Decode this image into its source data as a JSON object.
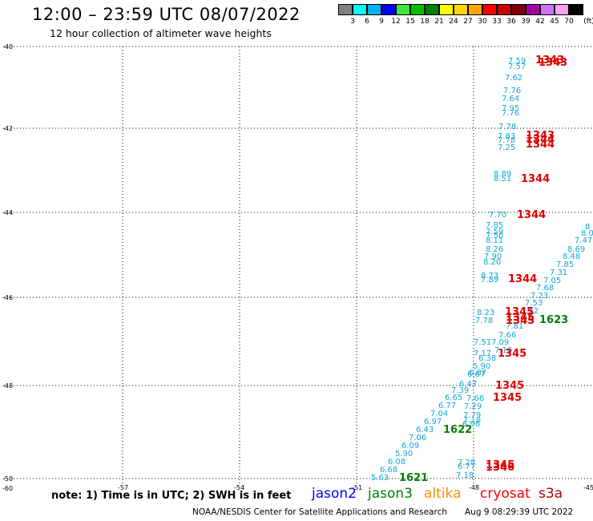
{
  "header": {
    "title": "12:00 – 23:59 UTC 08/07/2022",
    "subtitle": "12 hour collection of altimeter wave heights"
  },
  "colorbar": {
    "unit": "(ft)",
    "bins": [
      {
        "label": "3",
        "color": "#808080"
      },
      {
        "label": "6",
        "color": "#00ffff"
      },
      {
        "label": "9",
        "color": "#00b0f0"
      },
      {
        "label": "12",
        "color": "#0000ff"
      },
      {
        "label": "15",
        "color": "#3ee83e"
      },
      {
        "label": "18",
        "color": "#00c000"
      },
      {
        "label": "21",
        "color": "#008000"
      },
      {
        "label": "24",
        "color": "#ffff00"
      },
      {
        "label": "27",
        "color": "#ffd700"
      },
      {
        "label": "30",
        "color": "#ffa500"
      },
      {
        "label": "33",
        "color": "#ff0000"
      },
      {
        "label": "36",
        "color": "#c80000"
      },
      {
        "label": "39",
        "color": "#800000"
      },
      {
        "label": "42",
        "color": "#a000a0"
      },
      {
        "label": "45",
        "color": "#d070ff"
      },
      {
        "label": "70",
        "color": "#ff9ff0"
      },
      {
        "label": "",
        "color": "#000000"
      }
    ]
  },
  "axes": {
    "lat_labels": [
      "-40",
      "-42",
      "-44",
      "-46",
      "-48",
      "-50",
      "-60"
    ],
    "lon_labels": [
      "-57",
      "-54",
      "-51",
      "-48",
      "-45"
    ]
  },
  "swh_values": [
    "7.59",
    "7.57",
    "7.62",
    "7.76",
    "7.64",
    "7.95",
    "7.76",
    "7.78",
    "7.83",
    "7.78",
    "7.25",
    "8.89",
    "8.51",
    "7.70",
    "7.85",
    "7.59",
    "7.50",
    "8.11",
    "8.26",
    "7.90",
    "8.20",
    "8.73",
    "7.89",
    "8",
    "8.0",
    "7.47",
    "8.69",
    "8.48",
    "7.85",
    "7.31",
    "7.05",
    "7.68",
    "7.23",
    "7.53",
    "7.42",
    "8.23",
    "7.78",
    "7.81",
    "7.66",
    "7.51",
    "7.09",
    "7.17",
    "7.10",
    "6.38",
    "5.90",
    "6.67",
    "6.47",
    "6.87",
    "7.39",
    "6.65",
    "6.77",
    "7.04",
    "6.97",
    "6.43",
    "7.06",
    "6.09",
    "5.90",
    "6.08",
    "6.68",
    "5.63",
    "7.66",
    "7.29",
    "7.79",
    "7.18",
    "6.96",
    "7.28",
    "6.77",
    "7.18"
  ],
  "times": {
    "s3a": [
      "1343",
      "1343",
      "1343",
      "1344",
      "1344",
      "1344",
      "1344",
      "1344",
      "1345",
      "1345",
      "1345",
      "1345",
      "1345",
      "1345",
      "1345",
      "1346"
    ],
    "jason3": [
      "1623",
      "1622",
      "1621"
    ]
  },
  "footer": {
    "note": "note:  1) Time is in UTC;  2) SWH is in feet",
    "satellites": [
      {
        "name": "jason2",
        "color": "#0000ff"
      },
      {
        "name": "jason3",
        "color": "#008000"
      },
      {
        "name": "altika",
        "color": "#ff8c00"
      },
      {
        "name": "cryosat",
        "color": "#ff0000"
      },
      {
        "name": "s3a",
        "color": "#b00000"
      }
    ],
    "credit": "NOAA/NESDIS Center for Satellite Applications and Research",
    "timestamp": "Aug  9 08:29:39 UTC 2022"
  }
}
